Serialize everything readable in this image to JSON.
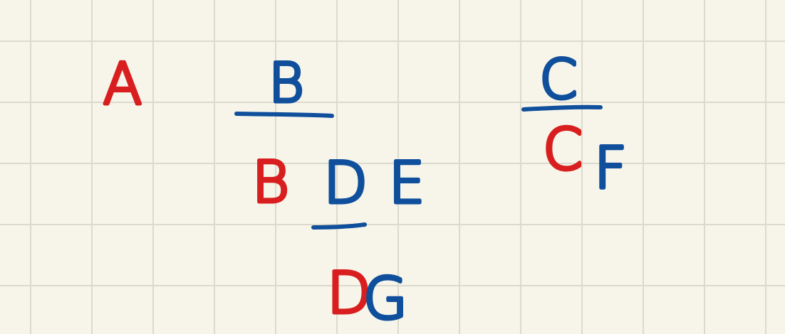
{
  "colors": {
    "paper": "#f7f5ea",
    "grid": "#dcd9cd",
    "red": "#d81e1e",
    "blue": "#0f4f9c"
  },
  "letters": {
    "a": "A",
    "b_top": "B",
    "b_bottom": "B",
    "d": "D",
    "e": "E",
    "c_top": "C",
    "c_bottom": "C",
    "f": "F",
    "d_bottom": "D",
    "g": "G"
  }
}
